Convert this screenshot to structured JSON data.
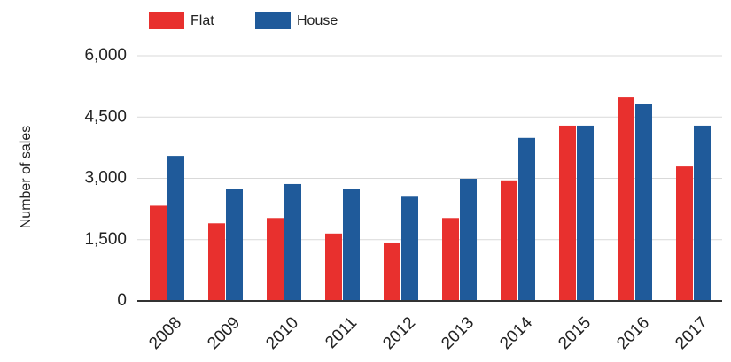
{
  "chart_data": {
    "type": "bar",
    "y_label": "Number of sales",
    "categories": [
      "2008",
      "2009",
      "2010",
      "2011",
      "2012",
      "2013",
      "2014",
      "2015",
      "2016",
      "2017"
    ],
    "series": [
      {
        "name": "Flat",
        "color": "#e8302e",
        "values": [
          2330,
          1900,
          2030,
          1650,
          1430,
          2030,
          2950,
          4290,
          4980,
          3290
        ]
      },
      {
        "name": "House",
        "color": "#1f5a9a",
        "values": [
          3550,
          2730,
          2860,
          2730,
          2550,
          2990,
          3990,
          4290,
          4810,
          4290
        ]
      }
    ],
    "ylim": [
      0,
      6000
    ],
    "yticks": [
      0,
      {
        "value": 1500,
        "label": "1,500"
      },
      {
        "value": 3000,
        "label": "3,000"
      },
      {
        "value": 4500,
        "label": "4,500"
      },
      {
        "value": 6000,
        "label": "6,000"
      }
    ],
    "grid": true
  }
}
